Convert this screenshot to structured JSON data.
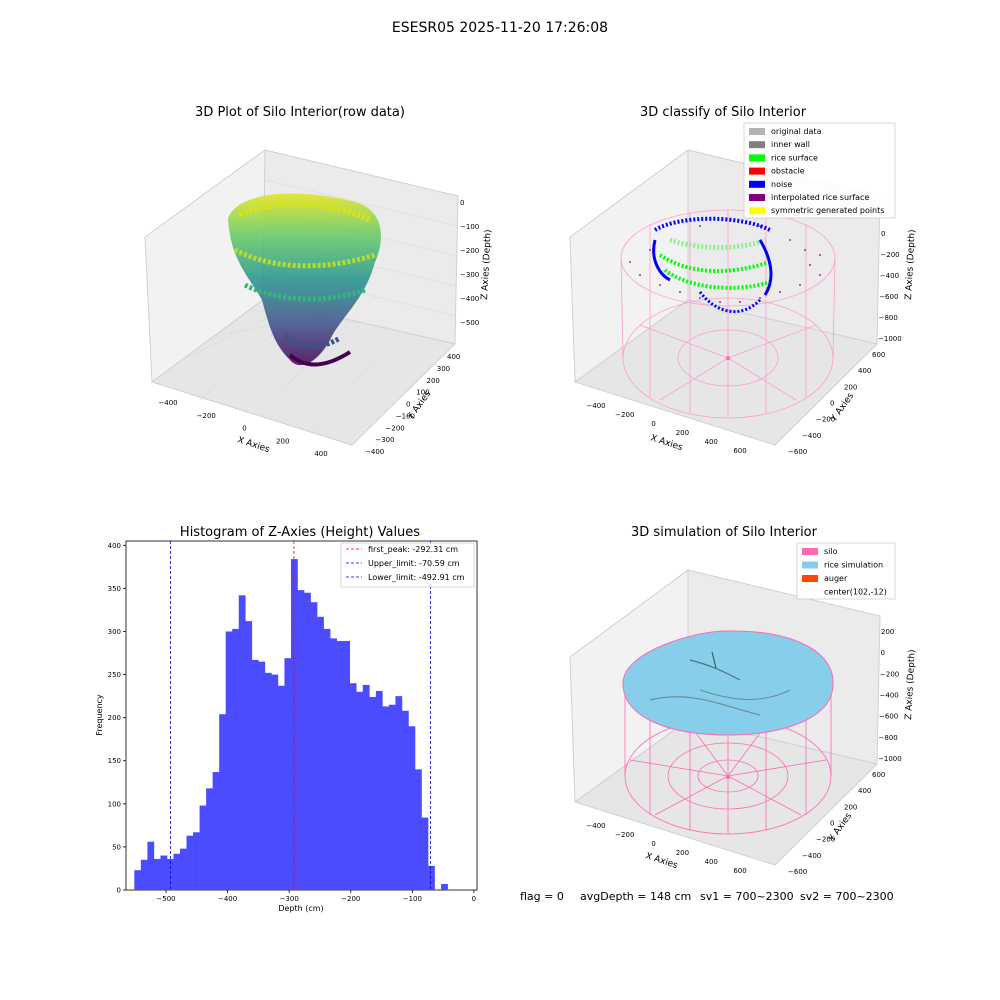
{
  "suptitle": "ESESR05 2025-11-20 17:26:08",
  "chart_data": [
    {
      "type": "scatter",
      "title": "3D Plot of Silo Interior(row data)",
      "projection": "3d",
      "xlabel": "X Axies",
      "ylabel": "Y Axies",
      "zlabel": "Z Axies (Depth)",
      "xticks": [
        "−400",
        "−200",
        "0",
        "200",
        "400"
      ],
      "yticks": [
        "−400",
        "−300",
        "−200",
        "−100",
        "0",
        "100",
        "200",
        "300",
        "400"
      ],
      "zticks": [
        "0",
        "−100",
        "−200",
        "−300",
        "−400",
        "−500"
      ],
      "colormap": "viridis"
    },
    {
      "type": "scatter",
      "title": "3D classify of Silo Interior",
      "projection": "3d",
      "xlabel": "X Axies",
      "ylabel": "Y Axies",
      "zlabel": "Z Axies (Depth)",
      "xticks": [
        "−400",
        "−200",
        "0",
        "200",
        "400",
        "600"
      ],
      "yticks": [
        "−600",
        "−400",
        "−200",
        "0",
        "200",
        "400",
        "600"
      ],
      "zticks": [
        "0",
        "−200",
        "−400",
        "−600",
        "−800",
        "−1000"
      ],
      "legend": [
        {
          "label": "original data",
          "color": "#b3b3b3"
        },
        {
          "label": "inner wall",
          "color": "#808080"
        },
        {
          "label": "rice surface",
          "color": "#00ff00"
        },
        {
          "label": "obstacle",
          "color": "#ff0000"
        },
        {
          "label": "noise",
          "color": "#0000ff"
        },
        {
          "label": "interpolated rice surface",
          "color": "#800080"
        },
        {
          "label": "symmetric generated points",
          "color": "#ffff00"
        }
      ]
    },
    {
      "type": "bar",
      "title": "Histogram of Z-Axies (Height) Values",
      "xlabel": "Depth (cm)",
      "ylabel": "Frequency",
      "xlim": [
        -565,
        5
      ],
      "ylim": [
        0,
        405
      ],
      "xticks": [
        -500,
        -400,
        -300,
        -200,
        -100,
        0
      ],
      "xtick_labels": [
        "−500",
        "−400",
        "−300",
        "−200",
        "−100",
        "0"
      ],
      "yticks": [
        0,
        50,
        100,
        150,
        200,
        250,
        300,
        350,
        400
      ],
      "bin_start": -551.5,
      "bin_width": 10.6,
      "values": [
        23,
        35,
        56,
        36,
        40,
        36,
        42,
        48,
        63,
        67,
        98,
        118,
        137,
        204,
        300,
        303,
        342,
        312,
        267,
        265,
        252,
        250,
        237,
        269,
        384,
        348,
        345,
        334,
        317,
        303,
        292,
        289,
        289,
        240,
        230,
        238,
        224,
        231,
        213,
        215,
        225,
        208,
        190,
        140,
        84,
        28,
        0,
        7
      ],
      "bar_color": "#4c4cff",
      "vlines": [
        {
          "label": "first_peak: -292.31 cm",
          "x": -292.31,
          "color": "#ff0000"
        },
        {
          "label": "Upper_limit: -70.59 cm",
          "x": -70.59,
          "color": "#0000cc"
        },
        {
          "label": "Lower_limit: -492.91 cm",
          "x": -492.91,
          "color": "#0000cc"
        }
      ]
    },
    {
      "type": "surface",
      "title": "3D simulation of Silo Interior",
      "projection": "3d",
      "xlabel": "X Axies",
      "ylabel": "Y Axies",
      "zlabel": "Z Axies (Depth)",
      "xticks": [
        "−400",
        "−200",
        "0",
        "200",
        "400",
        "600"
      ],
      "yticks": [
        "−600",
        "−400",
        "−200",
        "0",
        "200",
        "400",
        "600"
      ],
      "zticks": [
        "200",
        "0",
        "−200",
        "−400",
        "−600",
        "−800",
        "−1000"
      ],
      "legend": [
        {
          "label": "silo",
          "color": "#ff69b4"
        },
        {
          "label": "rice simulation",
          "color": "#87ceeb"
        },
        {
          "label": "auger",
          "color": "#ff4500"
        },
        {
          "label": "center(102,-12)",
          "color": ""
        }
      ]
    }
  ],
  "status_line": {
    "flag": "flag = 0",
    "avg_depth": "avgDepth = 148 cm",
    "sv1": "sv1 = 700~2300",
    "sv2": "sv2 = 700~2300"
  }
}
